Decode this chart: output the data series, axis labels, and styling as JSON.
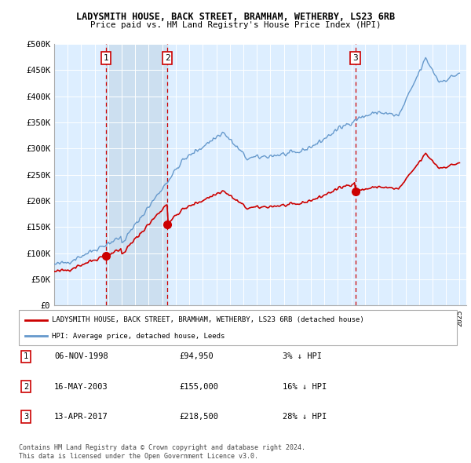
{
  "title": "LADYSMITH HOUSE, BACK STREET, BRAMHAM, WETHERBY, LS23 6RB",
  "subtitle": "Price paid vs. HM Land Registry's House Price Index (HPI)",
  "ylim": [
    0,
    500000
  ],
  "yticks": [
    0,
    50000,
    100000,
    150000,
    200000,
    250000,
    300000,
    350000,
    400000,
    450000,
    500000
  ],
  "ytick_labels": [
    "£0",
    "£50K",
    "£100K",
    "£150K",
    "£200K",
    "£250K",
    "£300K",
    "£350K",
    "£400K",
    "£450K",
    "£500K"
  ],
  "xlim_start": 1995.0,
  "xlim_end": 2025.5,
  "purchase_dates": [
    1998.84,
    2003.37,
    2017.28
  ],
  "purchase_prices": [
    94950,
    155000,
    218500
  ],
  "purchase_labels": [
    "1",
    "2",
    "3"
  ],
  "legend_line1": "LADYSMITH HOUSE, BACK STREET, BRAMHAM, WETHERBY, LS23 6RB (detached house)",
  "legend_line2": "HPI: Average price, detached house, Leeds",
  "table_rows": [
    [
      "1",
      "06-NOV-1998",
      "£94,950",
      "3% ↓ HPI"
    ],
    [
      "2",
      "16-MAY-2003",
      "£155,000",
      "16% ↓ HPI"
    ],
    [
      "3",
      "13-APR-2017",
      "£218,500",
      "28% ↓ HPI"
    ]
  ],
  "footnote1": "Contains HM Land Registry data © Crown copyright and database right 2024.",
  "footnote2": "This data is licensed under the Open Government Licence v3.0.",
  "hpi_color": "#6699cc",
  "price_color": "#cc0000",
  "vline_color": "#cc0000",
  "box_color": "#cc0000",
  "bg_color": "#ddeeff",
  "shade_color": "#c8daf0"
}
